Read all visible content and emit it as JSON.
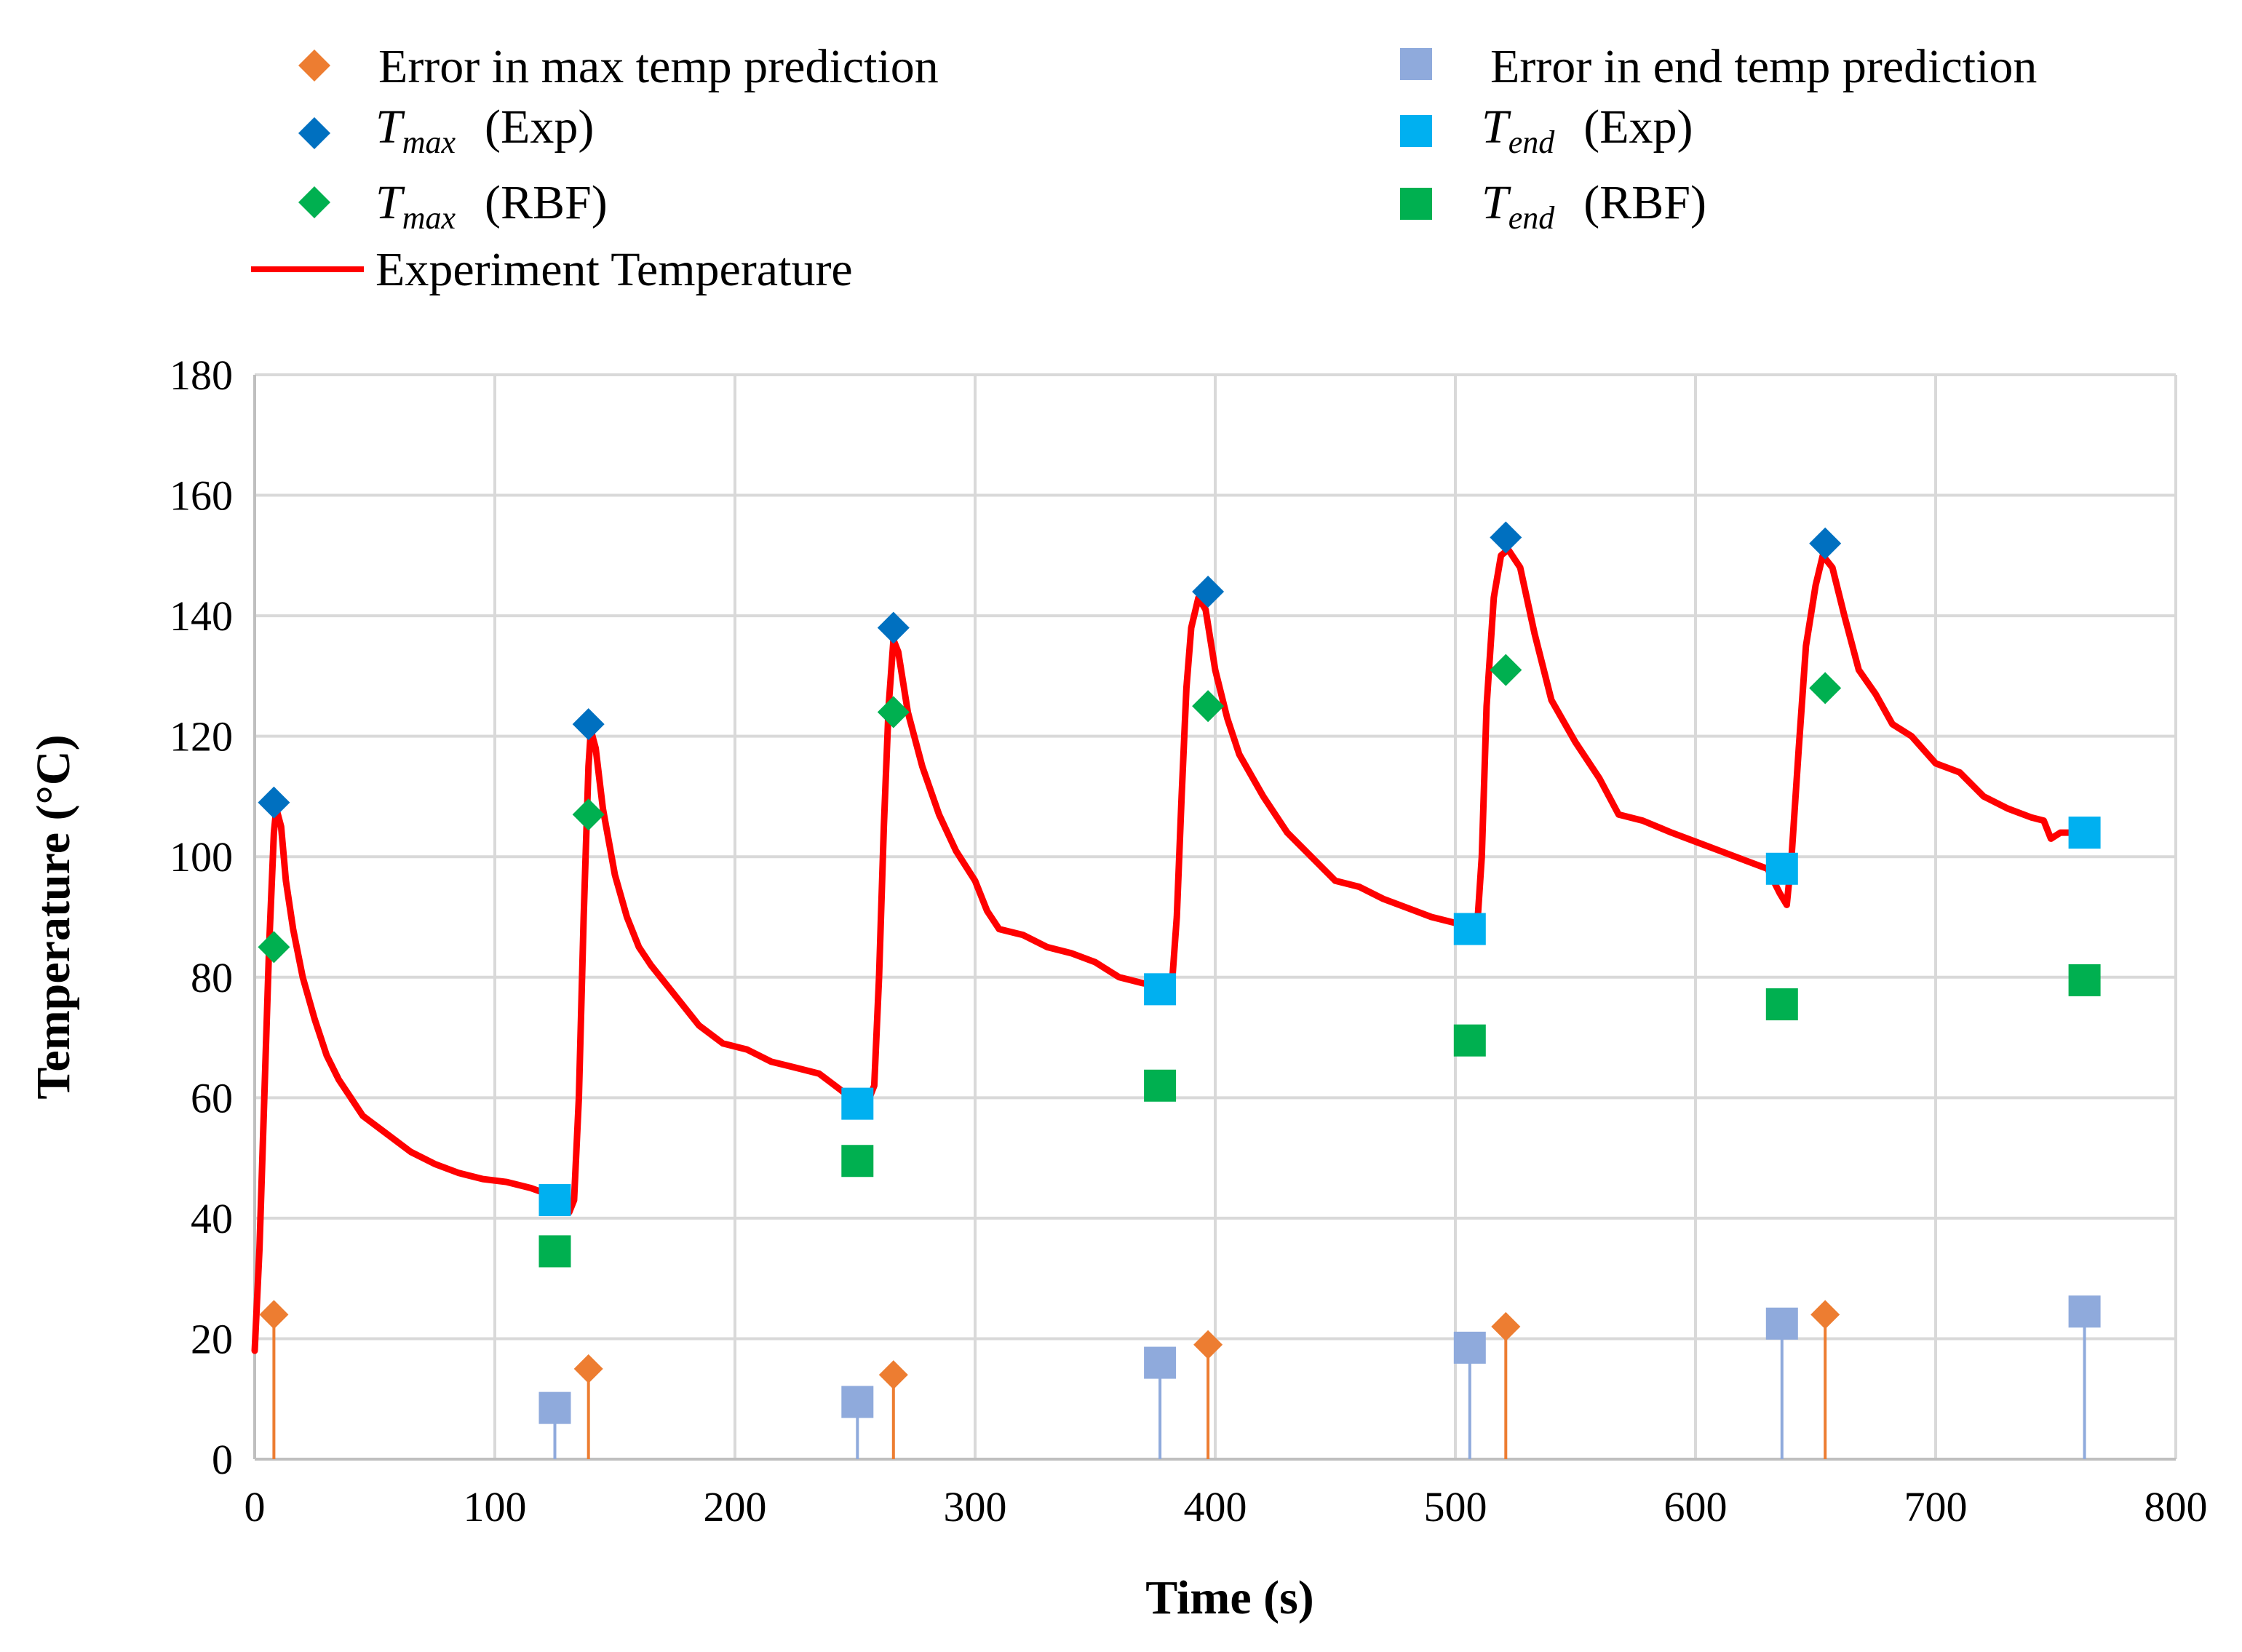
{
  "chart_data": {
    "type": "line",
    "title": "",
    "xlabel": "Time (s)",
    "ylabel": "Temperature (°C)",
    "xlim": [
      0,
      800
    ],
    "ylim": [
      0,
      180
    ],
    "xticks": [
      "0",
      "100",
      "200",
      "300",
      "400",
      "500",
      "600",
      "700",
      "800"
    ],
    "yticks": [
      "0",
      "20",
      "40",
      "60",
      "80",
      "100",
      "120",
      "140",
      "160",
      "180"
    ],
    "grid": true,
    "legend_position": "top",
    "colors": {
      "experiment": "#ff0000",
      "max_error": "#ed7d31",
      "end_error": "#8faadc",
      "tmax_exp": "#0070c0",
      "tmax_rbf": "#00b050",
      "tend_exp": "#00b0f0",
      "tend_rbf": "#00b050",
      "grid": "#d9d9d9"
    },
    "legend": {
      "max_error": "Error in max temp prediction",
      "end_error": "Error in end temp prediction",
      "tmax_exp": {
        "symbol": "T",
        "sub": "max",
        "label": "(Exp)"
      },
      "tend_exp": {
        "symbol": "T",
        "sub": "end",
        "label": "(Exp)"
      },
      "tmax_rbf": {
        "symbol": "T",
        "sub": "max",
        "label": "(RBF)"
      },
      "tend_rbf": {
        "symbol": "T",
        "sub": "end",
        "label": "(RBF)"
      },
      "experiment": "Experiment Temperature"
    },
    "series": [
      {
        "name": "Experiment Temperature",
        "kind": "line",
        "points": [
          [
            0,
            18
          ],
          [
            2,
            35
          ],
          [
            4,
            60
          ],
          [
            6,
            85
          ],
          [
            8,
            104
          ],
          [
            9,
            108
          ],
          [
            11,
            105
          ],
          [
            13,
            96
          ],
          [
            16,
            88
          ],
          [
            20,
            80
          ],
          [
            25,
            73
          ],
          [
            30,
            67
          ],
          [
            35,
            63
          ],
          [
            40,
            60
          ],
          [
            45,
            57
          ],
          [
            55,
            54
          ],
          [
            65,
            51
          ],
          [
            75,
            49
          ],
          [
            85,
            47.5
          ],
          [
            95,
            46.5
          ],
          [
            105,
            46
          ],
          [
            115,
            45
          ],
          [
            122,
            44
          ],
          [
            126,
            43
          ],
          [
            129,
            42.5
          ],
          [
            131,
            41
          ],
          [
            133,
            43
          ],
          [
            135,
            60
          ],
          [
            137,
            90
          ],
          [
            139,
            115
          ],
          [
            140,
            121
          ],
          [
            142,
            118
          ],
          [
            145,
            108
          ],
          [
            150,
            97
          ],
          [
            155,
            90
          ],
          [
            160,
            85
          ],
          [
            165,
            82
          ],
          [
            175,
            77
          ],
          [
            185,
            72
          ],
          [
            195,
            69
          ],
          [
            205,
            68
          ],
          [
            215,
            66
          ],
          [
            225,
            65
          ],
          [
            235,
            64
          ],
          [
            245,
            61
          ],
          [
            252,
            60
          ],
          [
            255,
            59
          ],
          [
            258,
            62
          ],
          [
            260,
            80
          ],
          [
            262,
            105
          ],
          [
            264,
            125
          ],
          [
            266,
            136
          ],
          [
            268,
            134
          ],
          [
            272,
            124
          ],
          [
            278,
            115
          ],
          [
            285,
            107
          ],
          [
            292,
            101
          ],
          [
            300,
            96
          ],
          [
            305,
            91
          ],
          [
            310,
            88
          ],
          [
            320,
            87
          ],
          [
            330,
            85
          ],
          [
            340,
            84
          ],
          [
            350,
            82.5
          ],
          [
            360,
            80
          ],
          [
            370,
            79
          ],
          [
            378,
            78.5
          ],
          [
            382,
            79
          ],
          [
            384,
            90
          ],
          [
            386,
            110
          ],
          [
            388,
            128
          ],
          [
            390,
            138
          ],
          [
            393,
            143
          ],
          [
            396,
            141
          ],
          [
            400,
            131
          ],
          [
            405,
            123
          ],
          [
            410,
            117
          ],
          [
            420,
            110
          ],
          [
            430,
            104
          ],
          [
            440,
            100
          ],
          [
            450,
            96
          ],
          [
            460,
            95
          ],
          [
            470,
            93
          ],
          [
            480,
            91.5
          ],
          [
            490,
            90
          ],
          [
            500,
            89
          ],
          [
            506,
            87.5
          ],
          [
            509,
            88
          ],
          [
            511,
            100
          ],
          [
            513,
            125
          ],
          [
            516,
            143
          ],
          [
            519,
            150
          ],
          [
            522,
            151
          ],
          [
            527,
            148
          ],
          [
            533,
            137
          ],
          [
            540,
            126
          ],
          [
            550,
            119
          ],
          [
            560,
            113
          ],
          [
            568,
            107
          ],
          [
            578,
            106
          ],
          [
            590,
            104
          ],
          [
            600,
            102.5
          ],
          [
            610,
            101
          ],
          [
            620,
            99.5
          ],
          [
            630,
            98
          ],
          [
            635,
            94
          ],
          [
            638,
            92
          ],
          [
            640,
            100
          ],
          [
            643,
            118
          ],
          [
            646,
            135
          ],
          [
            650,
            145
          ],
          [
            653,
            150
          ],
          [
            657,
            148
          ],
          [
            662,
            140
          ],
          [
            668,
            131
          ],
          [
            675,
            127
          ],
          [
            682,
            122
          ],
          [
            690,
            120
          ],
          [
            700,
            115.5
          ],
          [
            710,
            114
          ],
          [
            720,
            110
          ],
          [
            730,
            108
          ],
          [
            740,
            106.5
          ],
          [
            745,
            106
          ],
          [
            748,
            103
          ],
          [
            752,
            104
          ],
          [
            756,
            104
          ],
          [
            762,
            103
          ]
        ]
      },
      {
        "name": "Tmax (Exp)",
        "kind": "diamond",
        "x": [
          8,
          139,
          266,
          397,
          521,
          654
        ],
        "y": [
          109,
          122,
          138,
          144,
          153,
          152
        ]
      },
      {
        "name": "Tmax (RBF)",
        "kind": "diamond",
        "x": [
          8,
          139,
          266,
          397,
          521,
          654
        ],
        "y": [
          85,
          107,
          124,
          125,
          131,
          128
        ]
      },
      {
        "name": "Tend (Exp)",
        "kind": "square",
        "x": [
          125,
          251,
          377,
          506,
          636,
          762
        ],
        "y": [
          43,
          59,
          78,
          88,
          98,
          104
        ]
      },
      {
        "name": "Tend (RBF)",
        "kind": "square",
        "x": [
          125,
          251,
          377,
          506,
          636,
          762
        ],
        "y": [
          34.5,
          49.5,
          62,
          69.5,
          75.5,
          79.5
        ]
      },
      {
        "name": "Error in max temp prediction",
        "kind": "diamond-stem",
        "x": [
          8,
          139,
          266,
          397,
          521,
          654
        ],
        "y": [
          24,
          15,
          14,
          19,
          22,
          24
        ]
      },
      {
        "name": "Error in end temp prediction",
        "kind": "square-stem",
        "x": [
          125,
          251,
          377,
          506,
          636,
          762
        ],
        "y": [
          8.5,
          9.5,
          16,
          18.5,
          22.5,
          24.5
        ]
      }
    ]
  }
}
